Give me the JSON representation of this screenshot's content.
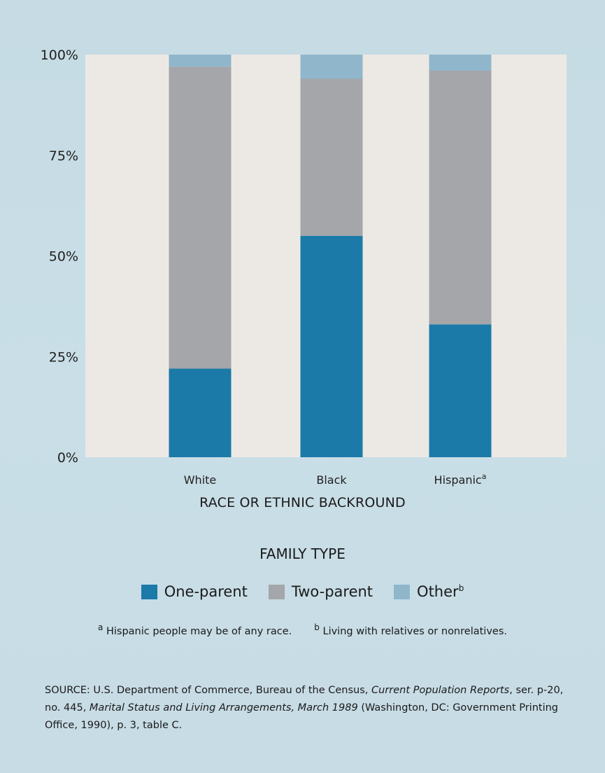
{
  "chart_data": {
    "type": "bar",
    "stacked": true,
    "categories": [
      "White",
      "Black",
      "Hispanic"
    ],
    "category_superscripts": [
      "",
      "",
      "a"
    ],
    "series": [
      {
        "name": "One-parent",
        "values": [
          22,
          55,
          33
        ],
        "color": "#1b7aa8"
      },
      {
        "name": "Two-parent",
        "values": [
          75,
          39,
          63
        ],
        "color": "#a4a6aa"
      },
      {
        "name": "Other",
        "values": [
          3,
          6,
          4
        ],
        "color": "#8fb6cb"
      }
    ],
    "ylim": [
      0,
      100
    ],
    "yticks": [
      "0%",
      "25%",
      "50%",
      "75%",
      "100%"
    ],
    "ytick_values": [
      0,
      25,
      50,
      75,
      100
    ],
    "xlabel": "RACE OR ETHNIC BACKROUND",
    "legend_title": "FAMILY TYPE",
    "legend_placement": "bottom-center",
    "grid": false,
    "plot_background": "#ece9e4"
  },
  "legend": {
    "items": [
      {
        "label": "One-parent",
        "sup": ""
      },
      {
        "label": "Two-parent",
        "sup": ""
      },
      {
        "label": "Other",
        "sup": "b"
      }
    ]
  },
  "footnotes": {
    "a_mark": "a",
    "a_text": "Hispanic people may be of any race.",
    "b_mark": "b",
    "b_text": "Living with relatives or nonrelatives."
  },
  "source": {
    "part1": "SOURCE:  U.S. Department of Commerce, Bureau of the Census, ",
    "title1": "Current Population Reports",
    "part2": ", ser. p-20, no. 445, ",
    "title2": "Marital Status and Living Arrangements, March 1989",
    "part3": " (Washington, DC: Government Printing Office, 1990), p. 3, table C."
  }
}
